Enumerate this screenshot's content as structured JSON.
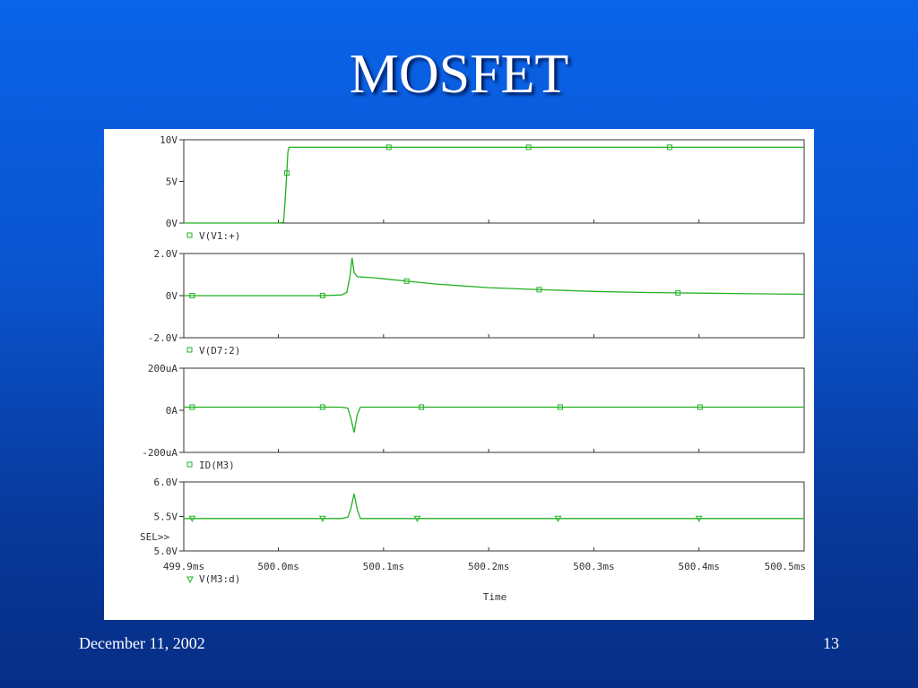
{
  "slide": {
    "title": "MOSFET",
    "date": "December 11, 2002",
    "page_number": "13"
  },
  "colors": {
    "background_top": "#0a63e8",
    "background_bottom": "#062e86",
    "trace": "#22b022",
    "plot_frame": "#333333"
  },
  "chart_data": {
    "type": "line",
    "x_axis": {
      "label": "Time",
      "ticks": [
        "499.9ms",
        "500.0ms",
        "500.1ms",
        "500.2ms",
        "500.3ms",
        "500.4ms",
        "500.5ms"
      ],
      "tick_values": [
        499.9,
        500.0,
        500.1,
        500.2,
        500.3,
        500.4,
        500.5
      ],
      "range": [
        499.91,
        500.5
      ],
      "unit": "ms"
    },
    "selection_marker": "SEL>>",
    "plots": [
      {
        "trace_name": "V(V1:+)",
        "marker": "square",
        "y_ticks": [
          "10V",
          "5V",
          "0V"
        ],
        "y_tick_values": [
          10,
          5,
          0
        ],
        "y_range": [
          0,
          10
        ],
        "x": [
          499.91,
          500.0,
          500.005,
          500.006,
          500.008,
          500.009,
          500.01,
          500.5
        ],
        "y": [
          0,
          0,
          0.1,
          2,
          6,
          8.5,
          9.1,
          9.1
        ],
        "marker_x": [
          500.008,
          500.105,
          500.238,
          500.372
        ]
      },
      {
        "trace_name": "V(D7:2)",
        "marker": "square",
        "y_ticks": [
          "2.0V",
          "0V",
          "-2.0V"
        ],
        "y_tick_values": [
          2,
          0,
          -2
        ],
        "y_range": [
          -2,
          2
        ],
        "x": [
          499.91,
          500.04,
          500.06,
          500.065,
          500.068,
          500.07,
          500.072,
          500.075,
          500.09,
          500.1,
          500.12,
          500.15,
          500.2,
          500.25,
          500.3,
          500.35,
          500.4,
          500.45,
          500.5
        ],
        "y": [
          0.0,
          0.0,
          0.03,
          0.15,
          0.9,
          1.8,
          1.1,
          0.9,
          0.85,
          0.8,
          0.7,
          0.55,
          0.38,
          0.28,
          0.2,
          0.15,
          0.12,
          0.09,
          0.07
        ],
        "marker_x": [
          499.918,
          500.042,
          500.122,
          500.248,
          500.38
        ]
      },
      {
        "trace_name": "ID(M3)",
        "marker": "square",
        "y_ticks": [
          "200uA",
          "0A",
          "-200uA"
        ],
        "y_tick_values": [
          200,
          0,
          -200
        ],
        "y_range": [
          -200,
          200
        ],
        "x": [
          499.91,
          500.06,
          500.066,
          500.069,
          500.072,
          500.075,
          500.078,
          500.5
        ],
        "y": [
          15,
          15,
          10,
          -40,
          -105,
          -20,
          15,
          15
        ],
        "marker_x": [
          499.918,
          500.042,
          500.136,
          500.268,
          500.401
        ]
      },
      {
        "trace_name": "V(M3:d)",
        "marker": "triangle",
        "y_ticks": [
          "6.0V",
          "5.5V",
          "5.0V"
        ],
        "y_tick_values": [
          6.0,
          5.5,
          5.0
        ],
        "y_range": [
          5.0,
          6.0
        ],
        "x": [
          499.91,
          500.06,
          500.066,
          500.069,
          500.072,
          500.075,
          500.078,
          500.5
        ],
        "y": [
          5.47,
          5.47,
          5.49,
          5.62,
          5.83,
          5.6,
          5.47,
          5.47
        ],
        "marker_x": [
          499.918,
          500.042,
          500.132,
          500.266,
          500.4
        ]
      }
    ]
  }
}
